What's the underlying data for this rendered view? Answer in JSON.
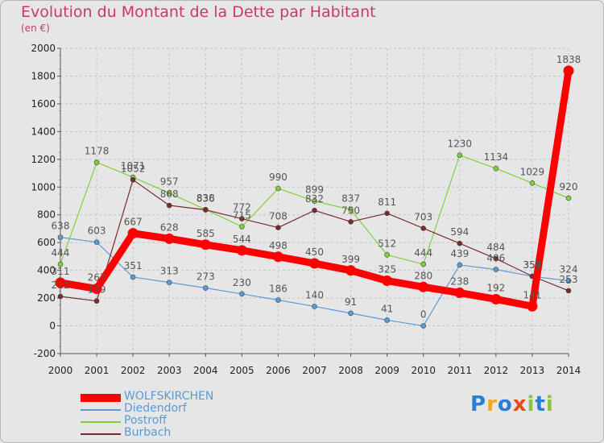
{
  "title": "Evolution du Montant de la Dette par Habitant",
  "subtitle": "(en €)",
  "logo": {
    "letters": [
      "P",
      "r",
      "o",
      "x",
      "i",
      "t",
      "i"
    ],
    "colors": [
      "#2a7fd4",
      "#f5a623",
      "#2a7fd4",
      "#e64a19",
      "#8bc34a",
      "#2a7fd4",
      "#8bc34a"
    ]
  },
  "chart_data": {
    "type": "line",
    "title": "Evolution du Montant de la Dette par Habitant",
    "subtitle": "(en €)",
    "xlabel": "",
    "ylabel": "",
    "x": [
      "2000",
      "2001",
      "2002",
      "2003",
      "2004",
      "2005",
      "2006",
      "2007",
      "2008",
      "2009",
      "2010",
      "2011",
      "2012",
      "2013",
      "2014"
    ],
    "ylim": [
      -200,
      2000
    ],
    "yticks": [
      -200,
      0,
      200,
      400,
      600,
      800,
      1000,
      1200,
      1400,
      1600,
      1800,
      2000
    ],
    "grid": "horizontal dashed",
    "legend": "bottom-left",
    "series": [
      {
        "name": "WOLFSKIRCHEN",
        "color": "#ff0000",
        "values": [
          311,
          267,
          667,
          628,
          585,
          544,
          498,
          450,
          399,
          325,
          280,
          238,
          192,
          141,
          1838
        ],
        "labels": [
          "311",
          "267",
          "667",
          "628",
          "585",
          "544",
          "498",
          "450",
          "399",
          "325",
          "280",
          "238",
          "192",
          "141",
          "1838"
        ]
      },
      {
        "name": "Diedendorf",
        "color": "#5b9bd5",
        "values": [
          638,
          603,
          351,
          313,
          273,
          230,
          186,
          140,
          91,
          41,
          0,
          439,
          406,
          357,
          324
        ],
        "labels": [
          "638",
          "603",
          "351",
          "313",
          "273",
          "230",
          "186",
          "140",
          "91",
          "41",
          "0",
          "439",
          "406",
          "357",
          "324"
        ]
      },
      {
        "name": "Postroff",
        "color": "#7fd13b",
        "values": [
          444,
          1178,
          1071,
          957,
          838,
          715,
          990,
          899,
          837,
          512,
          444,
          1230,
          1134,
          1029,
          920
        ],
        "labels": [
          "444",
          "1178",
          "1071",
          "957",
          "838",
          "715",
          "990",
          "899",
          "837",
          "512",
          "444",
          "1230",
          "1134",
          "1029",
          "920"
        ]
      },
      {
        "name": "Burbach",
        "color": "#7b2a2a",
        "values": [
          212,
          179,
          1052,
          868,
          836,
          772,
          708,
          832,
          750,
          811,
          703,
          594,
          484,
          358,
          253
        ],
        "labels": [
          "212",
          "179",
          "1052",
          "868",
          "836",
          "772",
          "708",
          "832",
          "750",
          "811",
          "703",
          "594",
          "484",
          "358",
          "253"
        ]
      }
    ]
  }
}
